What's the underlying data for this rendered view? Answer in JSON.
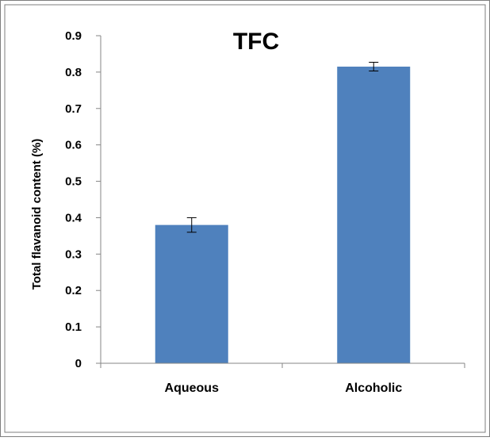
{
  "chart_data": {
    "type": "bar",
    "title": "TFC",
    "xlabel": "",
    "ylabel": "Total flavanoid  content (%)",
    "categories": [
      "Aqueous",
      "Alcoholic"
    ],
    "values": [
      0.38,
      0.815
    ],
    "errors": [
      0.02,
      0.012
    ],
    "ylim": [
      0,
      0.9
    ],
    "yticks": [
      "0",
      "0.1",
      "0.2",
      "0.3",
      "0.4",
      "0.5",
      "0.6",
      "0.7",
      "0.8",
      "0.9"
    ],
    "grid": false,
    "legend": "none",
    "bar_color": "#4f81bd"
  }
}
